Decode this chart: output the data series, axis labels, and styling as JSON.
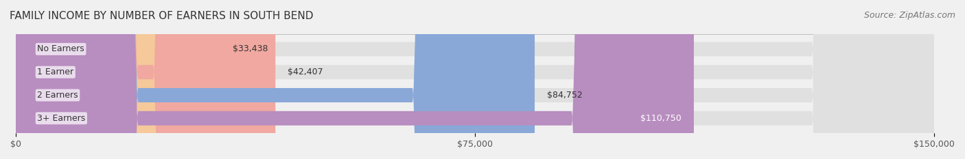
{
  "title": "FAMILY INCOME BY NUMBER OF EARNERS IN SOUTH BEND",
  "source": "Source: ZipAtlas.com",
  "categories": [
    "No Earners",
    "1 Earner",
    "2 Earners",
    "3+ Earners"
  ],
  "values": [
    33438,
    42407,
    84752,
    110750
  ],
  "bar_colors": [
    "#f5c99a",
    "#f0a8a0",
    "#89a8d8",
    "#b88dc0"
  ],
  "bar_edge_colors": [
    "#e8b07a",
    "#e08880",
    "#6090c8",
    "#a070b0"
  ],
  "label_colors": [
    "#333333",
    "#333333",
    "#333333",
    "#ffffff"
  ],
  "value_labels": [
    "$33,438",
    "$42,407",
    "$84,752",
    "$110,750"
  ],
  "x_ticks": [
    0,
    75000,
    150000
  ],
  "x_tick_labels": [
    "$0",
    "$75,000",
    "$150,000"
  ],
  "xlim": [
    0,
    150000
  ],
  "bg_color": "#f0f0f0",
  "bar_bg_color": "#e8e8e8",
  "title_fontsize": 11,
  "source_fontsize": 9,
  "label_fontsize": 9,
  "value_fontsize": 9,
  "tick_fontsize": 9
}
